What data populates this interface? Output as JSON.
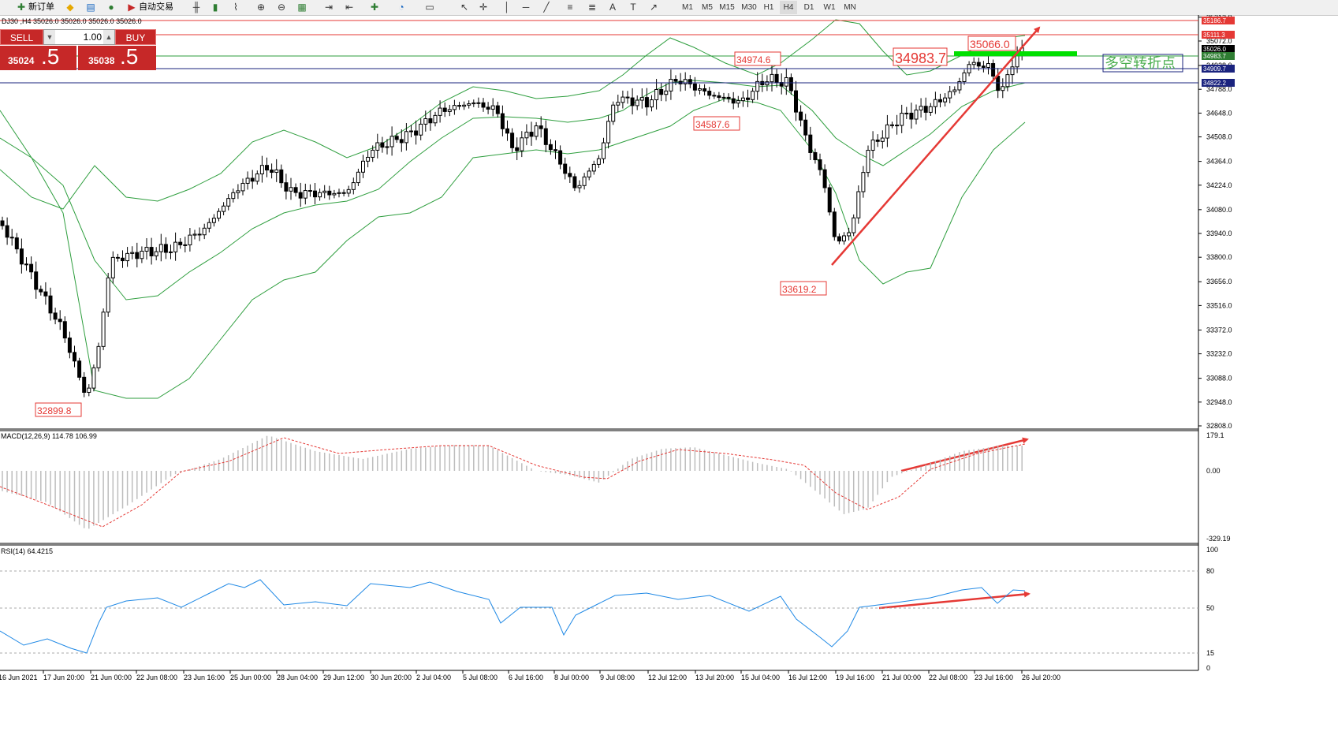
{
  "toolbar": {
    "new_order_label": "新订单",
    "auto_trading_label": "自动交易",
    "timeframes": [
      "M1",
      "M5",
      "M15",
      "M30",
      "H1",
      "H4",
      "D1",
      "W1",
      "MN"
    ]
  },
  "chart": {
    "header": "DJ30 ,H4  35026.0 35026.0 35026.0 35026.0",
    "trade_panel": {
      "sell_label": "SELL",
      "buy_label": "BUY",
      "lot": "1.00",
      "sell_price_small": "35024",
      "sell_price_big": ".5",
      "buy_price_small": "35038",
      "buy_price_big": ".5"
    },
    "y_axis_ticks": [
      "35212.0",
      "35072.0",
      "34928.0",
      "34788.0",
      "34648.0",
      "34508.0",
      "34364.0",
      "34224.0",
      "34080.0",
      "33940.0",
      "33800.0",
      "33656.0",
      "33516.0",
      "33372.0",
      "33232.0",
      "33088.0",
      "32948.0",
      "32808.0"
    ],
    "price_tags": [
      {
        "value": "35186.7",
        "color": "#e53935"
      },
      {
        "value": "35111.3",
        "color": "#e53935"
      },
      {
        "value": "35026.0",
        "color": "#000000"
      },
      {
        "value": "34983.7",
        "color": "#2e7d32"
      },
      {
        "value": "34909.7",
        "color": "#1a237e"
      },
      {
        "value": "34822.2",
        "color": "#1a237e"
      }
    ],
    "annotations": [
      "34974.6",
      "34983.7",
      "35066.0",
      "34587.6",
      "33619.2",
      "32899.8"
    ],
    "pivot_label": "多空转折点",
    "x_axis_ticks": [
      "16 Jun 2021",
      "17 Jun 20:00",
      "21 Jun 00:00",
      "22 Jun 08:00",
      "23 Jun 16:00",
      "25 Jun 00:00",
      "28 Jun 04:00",
      "29 Jun 12:00",
      "30 Jun 20:00",
      "2 Jul 04:00",
      "5 Jul 08:00",
      "6 Jul 16:00",
      "8 Jul 00:00",
      "9 Jul 08:00",
      "12 Jul 12:00",
      "13 Jul 20:00",
      "15 Jul 04:00",
      "16 Jul 12:00",
      "19 Jul 16:00",
      "21 Jul 00:00",
      "22 Jul 08:00",
      "23 Jul 16:00",
      "26 Jul 20:00"
    ]
  },
  "macd": {
    "label": "MACD(12,26,9) 114.78 106.99",
    "axis_ticks": [
      "179.1",
      "0.00",
      "-329.19"
    ]
  },
  "rsi": {
    "label": "RSI(14) 64.4215",
    "axis_ticks": [
      "100",
      "80",
      "50",
      "15",
      "0"
    ]
  },
  "colors": {
    "bollinger": "#2e9e3e",
    "annotation": "#e53935",
    "trend_arrow": "#e53935",
    "rsi_line": "#1e88e5",
    "pivot_line": "#00e000"
  }
}
